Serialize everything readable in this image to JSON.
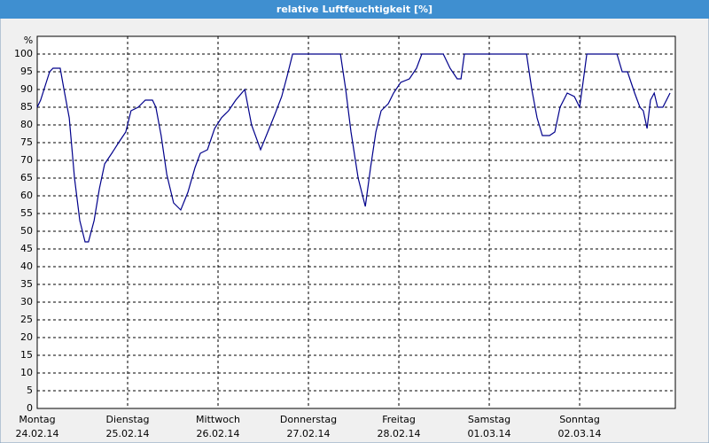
{
  "chart_data": {
    "type": "line",
    "title": "relative Luftfeuchtigkeit [%]",
    "y_label": "%",
    "xlim": [
      0,
      169.4
    ],
    "xticks": [
      {
        "value": 0,
        "label": [
          "Montag",
          "24.02.14"
        ]
      },
      {
        "value": 24,
        "label": [
          "Dienstag",
          "25.02.14"
        ]
      },
      {
        "value": 48,
        "label": [
          "Mittwoch",
          "26.02.14"
        ]
      },
      {
        "value": 72,
        "label": [
          "Donnerstag",
          "27.02.14"
        ]
      },
      {
        "value": 96,
        "label": [
          "Freitag",
          "28.02.14"
        ]
      },
      {
        "value": 120,
        "label": [
          "Samstag",
          "01.03.14"
        ]
      },
      {
        "value": 144,
        "label": [
          "Sonntag",
          "02.03.14"
        ]
      }
    ],
    "ylim": [
      0,
      105
    ],
    "yticks": [
      0,
      5,
      10,
      15,
      20,
      25,
      30,
      35,
      40,
      45,
      50,
      55,
      60,
      65,
      70,
      75,
      80,
      85,
      90,
      95,
      100
    ],
    "grid": true,
    "color": "#00008b",
    "x": [
      0,
      0.9,
      2.4,
      3.3,
      4.2,
      6.1,
      7.1,
      8.5,
      9.9,
      11.3,
      12.7,
      13.6,
      15.1,
      16.5,
      17.9,
      19.8,
      21.6,
      23.5,
      24.9,
      26.8,
      28.7,
      30.6,
      31.5,
      32.9,
      34.4,
      36.2,
      38.1,
      40.0,
      41.9,
      43.3,
      45.2,
      47.1,
      48.9,
      50.8,
      52.7,
      55.1,
      56.9,
      59.3,
      61.2,
      63.1,
      64.9,
      66.4,
      67.8,
      80.5,
      81.9,
      83.3,
      85.2,
      87.1,
      88.5,
      89.9,
      91.3,
      93.2,
      94.6,
      96.5,
      98.8,
      100.7,
      102.1,
      107.8,
      109.6,
      111.5,
      112.5,
      113.4,
      129.9,
      131.3,
      132.7,
      134.1,
      136.0,
      137.4,
      138.8,
      140.7,
      142.6,
      144.0,
      144.9,
      145.9,
      153.9,
      155.3,
      156.7,
      158.6,
      160.0,
      160.9,
      161.9,
      162.8,
      163.8,
      164.7,
      166.1,
      168.0
    ],
    "values": [
      85,
      87,
      92,
      95,
      96,
      96,
      90,
      82,
      65,
      53,
      47,
      47,
      53,
      62,
      69,
      72,
      75,
      78,
      84,
      85,
      87,
      87,
      85,
      77,
      66,
      58,
      56,
      61,
      68,
      72,
      73,
      79,
      82,
      84,
      87,
      90,
      80,
      73,
      78,
      83,
      88,
      94,
      100,
      100,
      90,
      78,
      65,
      57,
      68,
      78,
      84,
      86,
      89,
      92,
      93,
      96,
      100,
      100,
      96,
      93,
      93,
      100,
      100,
      90,
      82,
      77,
      77,
      78,
      85,
      89,
      88,
      85,
      92,
      100,
      100,
      95,
      95,
      89,
      85,
      84,
      79,
      87,
      89,
      85,
      85,
      89
    ]
  }
}
